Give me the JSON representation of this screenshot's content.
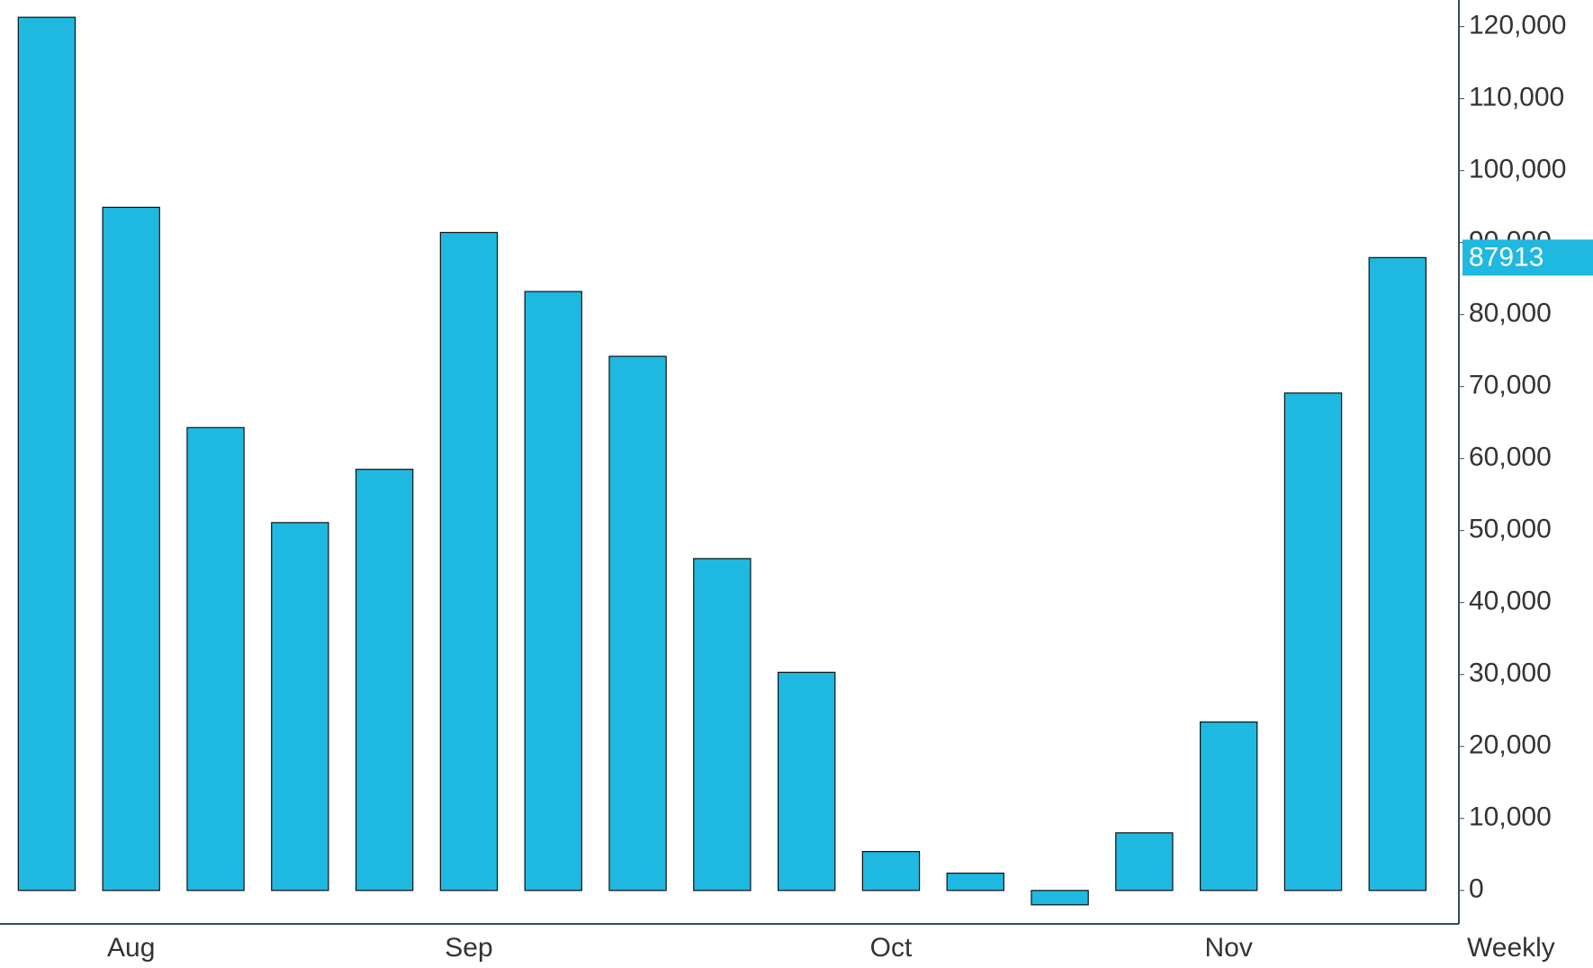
{
  "chart_data": {
    "type": "bar",
    "interval": "Weekly",
    "categories": [
      null,
      "Aug",
      null,
      null,
      null,
      "Sep",
      null,
      null,
      null,
      null,
      "Oct",
      null,
      null,
      null,
      "Nov",
      null,
      null
    ],
    "values": [
      121300,
      94900,
      64300,
      51100,
      58500,
      91400,
      83200,
      74200,
      46100,
      30300,
      5400,
      2400,
      -2000,
      8000,
      23400,
      69100,
      87913
    ],
    "color": "#1fb8e0",
    "ylim": [
      -4650,
      123700
    ],
    "yticks": [
      0,
      {
        "value": 10000,
        "label": "10,000"
      },
      {
        "value": 20000,
        "label": "20,000"
      },
      {
        "value": 30000,
        "label": "30,000"
      },
      {
        "value": 40000,
        "label": "40,000"
      },
      {
        "value": 50000,
        "label": "50,000"
      },
      {
        "value": 60000,
        "label": "60,000"
      },
      {
        "value": 70000,
        "label": "70,000"
      },
      {
        "value": 80000,
        "label": "80,000"
      },
      {
        "value": 90000,
        "label": "90,000"
      },
      {
        "value": 100000,
        "label": "100,000"
      },
      {
        "value": 110000,
        "label": "110,000"
      },
      {
        "value": 120000,
        "label": "120,000"
      }
    ],
    "grid": false
  }
}
